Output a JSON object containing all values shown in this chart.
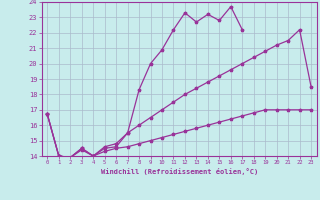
{
  "xlabel": "Windchill (Refroidissement éolien,°C)",
  "bg_color": "#c8ecec",
  "grid_color": "#aabbcc",
  "line_color": "#993399",
  "xlim": [
    -0.5,
    23.5
  ],
  "ylim": [
    14,
    24
  ],
  "xticks": [
    0,
    1,
    2,
    3,
    4,
    5,
    6,
    7,
    8,
    9,
    10,
    11,
    12,
    13,
    14,
    15,
    16,
    17,
    18,
    19,
    20,
    21,
    22,
    23
  ],
  "yticks": [
    14,
    15,
    16,
    17,
    18,
    19,
    20,
    21,
    22,
    23,
    24
  ],
  "line1_x": [
    0,
    1,
    2,
    3,
    4,
    5,
    6,
    7,
    8,
    9,
    10,
    11,
    12,
    13,
    14,
    15,
    16,
    17
  ],
  "line1_y": [
    16.7,
    14.0,
    13.9,
    14.5,
    14.0,
    14.5,
    14.6,
    15.5,
    18.3,
    20.0,
    20.9,
    22.2,
    23.3,
    22.7,
    23.2,
    22.8,
    23.7,
    22.2
  ],
  "line2_x": [
    0,
    1,
    2,
    3,
    4,
    5,
    6,
    7,
    8,
    9,
    10,
    11,
    12,
    13,
    14,
    15,
    16,
    17,
    18,
    19,
    20,
    21,
    22,
    23
  ],
  "line2_y": [
    16.7,
    14.0,
    13.9,
    14.4,
    14.0,
    14.6,
    14.8,
    15.5,
    16.0,
    16.5,
    17.0,
    17.5,
    18.0,
    18.4,
    18.8,
    19.2,
    19.6,
    20.0,
    20.4,
    20.8,
    21.2,
    21.5,
    22.2,
    18.5
  ],
  "line3_x": [
    0,
    1,
    2,
    3,
    4,
    5,
    6,
    7,
    8,
    9,
    10,
    11,
    12,
    13,
    14,
    15,
    16,
    17,
    18,
    19,
    20,
    21,
    22,
    23
  ],
  "line3_y": [
    16.7,
    14.0,
    13.9,
    14.5,
    14.0,
    14.3,
    14.5,
    14.6,
    14.8,
    15.0,
    15.2,
    15.4,
    15.6,
    15.8,
    16.0,
    16.2,
    16.4,
    16.6,
    16.8,
    17.0,
    17.0,
    17.0,
    17.0,
    17.0
  ]
}
